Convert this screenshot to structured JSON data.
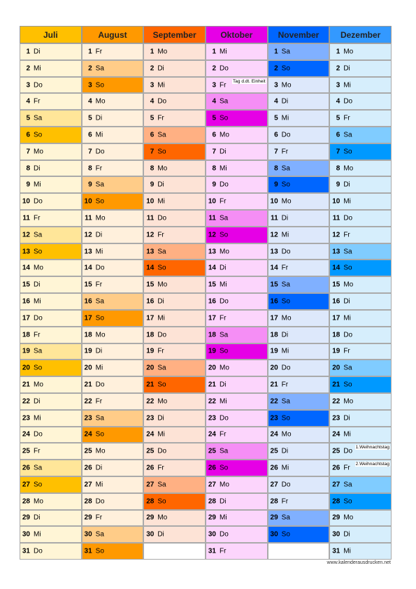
{
  "months": [
    {
      "name": "Juli",
      "colors": {
        "header": "#ffc000",
        "default": "#fff5d6",
        "Sa": "#ffe699",
        "So": "#ffc000"
      },
      "days": [
        [
          1,
          "Di"
        ],
        [
          2,
          "Mi"
        ],
        [
          3,
          "Do"
        ],
        [
          4,
          "Fr"
        ],
        [
          5,
          "Sa"
        ],
        [
          6,
          "So"
        ],
        [
          7,
          "Mo"
        ],
        [
          8,
          "Di"
        ],
        [
          9,
          "Mi"
        ],
        [
          10,
          "Do"
        ],
        [
          11,
          "Fr"
        ],
        [
          12,
          "Sa"
        ],
        [
          13,
          "So"
        ],
        [
          14,
          "Mo"
        ],
        [
          15,
          "Di"
        ],
        [
          16,
          "Mi"
        ],
        [
          17,
          "Do"
        ],
        [
          18,
          "Fr"
        ],
        [
          19,
          "Sa"
        ],
        [
          20,
          "So"
        ],
        [
          21,
          "Mo"
        ],
        [
          22,
          "Di"
        ],
        [
          23,
          "Mi"
        ],
        [
          24,
          "Do"
        ],
        [
          25,
          "Fr"
        ],
        [
          26,
          "Sa"
        ],
        [
          27,
          "So"
        ],
        [
          28,
          "Mo"
        ],
        [
          29,
          "Di"
        ],
        [
          30,
          "Mi"
        ],
        [
          31,
          "Do"
        ]
      ]
    },
    {
      "name": "August",
      "colors": {
        "header": "#ff9900",
        "default": "#fff0dc",
        "Sa": "#ffcc88",
        "So": "#ff9900"
      },
      "days": [
        [
          1,
          "Fr"
        ],
        [
          2,
          "Sa"
        ],
        [
          3,
          "So"
        ],
        [
          4,
          "Mo"
        ],
        [
          5,
          "Di"
        ],
        [
          6,
          "Mi"
        ],
        [
          7,
          "Do"
        ],
        [
          8,
          "Fr"
        ],
        [
          9,
          "Sa"
        ],
        [
          10,
          "So"
        ],
        [
          11,
          "Mo"
        ],
        [
          12,
          "Di"
        ],
        [
          13,
          "Mi"
        ],
        [
          14,
          "Do"
        ],
        [
          15,
          "Fr"
        ],
        [
          16,
          "Sa"
        ],
        [
          17,
          "So"
        ],
        [
          18,
          "Mo"
        ],
        [
          19,
          "Di"
        ],
        [
          20,
          "Mi"
        ],
        [
          21,
          "Do"
        ],
        [
          22,
          "Fr"
        ],
        [
          23,
          "Sa"
        ],
        [
          24,
          "So"
        ],
        [
          25,
          "Mo"
        ],
        [
          26,
          "Di"
        ],
        [
          27,
          "Mi"
        ],
        [
          28,
          "Do"
        ],
        [
          29,
          "Fr"
        ],
        [
          30,
          "Sa"
        ],
        [
          31,
          "So"
        ]
      ]
    },
    {
      "name": "September",
      "colors": {
        "header": "#ff6600",
        "default": "#fde3d6",
        "Sa": "#ffb083",
        "So": "#ff6600"
      },
      "days": [
        [
          1,
          "Mo"
        ],
        [
          2,
          "Di"
        ],
        [
          3,
          "Mi"
        ],
        [
          4,
          "Do"
        ],
        [
          5,
          "Fr"
        ],
        [
          6,
          "Sa"
        ],
        [
          7,
          "So"
        ],
        [
          8,
          "Mo"
        ],
        [
          9,
          "Di"
        ],
        [
          10,
          "Mi"
        ],
        [
          11,
          "Do"
        ],
        [
          12,
          "Fr"
        ],
        [
          13,
          "Sa"
        ],
        [
          14,
          "So"
        ],
        [
          15,
          "Mo"
        ],
        [
          16,
          "Di"
        ],
        [
          17,
          "Mi"
        ],
        [
          18,
          "Do"
        ],
        [
          19,
          "Fr"
        ],
        [
          20,
          "Sa"
        ],
        [
          21,
          "So"
        ],
        [
          22,
          "Mo"
        ],
        [
          23,
          "Di"
        ],
        [
          24,
          "Mi"
        ],
        [
          25,
          "Do"
        ],
        [
          26,
          "Fr"
        ],
        [
          27,
          "Sa"
        ],
        [
          28,
          "So"
        ],
        [
          29,
          "Mo"
        ],
        [
          30,
          "Di"
        ]
      ]
    },
    {
      "name": "Oktober",
      "colors": {
        "header": "#e600e6",
        "default": "#fcd5fc",
        "Sa": "#f58ef5",
        "So": "#e600e6"
      },
      "days": [
        [
          1,
          "Mi"
        ],
        [
          2,
          "Do"
        ],
        [
          3,
          "Fr",
          "Tag d.dt. Einheit"
        ],
        [
          4,
          "Sa"
        ],
        [
          5,
          "So"
        ],
        [
          6,
          "Mo"
        ],
        [
          7,
          "Di"
        ],
        [
          8,
          "Mi"
        ],
        [
          9,
          "Do"
        ],
        [
          10,
          "Fr"
        ],
        [
          11,
          "Sa"
        ],
        [
          12,
          "So"
        ],
        [
          13,
          "Mo"
        ],
        [
          14,
          "Di"
        ],
        [
          15,
          "Mi"
        ],
        [
          16,
          "Do"
        ],
        [
          17,
          "Fr"
        ],
        [
          18,
          "Sa"
        ],
        [
          19,
          "So"
        ],
        [
          20,
          "Mo"
        ],
        [
          21,
          "Di"
        ],
        [
          22,
          "Mi"
        ],
        [
          23,
          "Do"
        ],
        [
          24,
          "Fr"
        ],
        [
          25,
          "Sa"
        ],
        [
          26,
          "So"
        ],
        [
          27,
          "Mo"
        ],
        [
          28,
          "Di"
        ],
        [
          29,
          "Mi"
        ],
        [
          30,
          "Do"
        ],
        [
          31,
          "Fr"
        ]
      ]
    },
    {
      "name": "November",
      "colors": {
        "header": "#0066ff",
        "default": "#dde8fb",
        "Sa": "#80b0ff",
        "So": "#0066ff"
      },
      "days": [
        [
          1,
          "Sa"
        ],
        [
          2,
          "So"
        ],
        [
          3,
          "Mo"
        ],
        [
          4,
          "Di"
        ],
        [
          5,
          "Mi"
        ],
        [
          6,
          "Do"
        ],
        [
          7,
          "Fr"
        ],
        [
          8,
          "Sa"
        ],
        [
          9,
          "So"
        ],
        [
          10,
          "Mo"
        ],
        [
          11,
          "Di"
        ],
        [
          12,
          "Mi"
        ],
        [
          13,
          "Do"
        ],
        [
          14,
          "Fr"
        ],
        [
          15,
          "Sa"
        ],
        [
          16,
          "So"
        ],
        [
          17,
          "Mo"
        ],
        [
          18,
          "Di"
        ],
        [
          19,
          "Mi"
        ],
        [
          20,
          "Do"
        ],
        [
          21,
          "Fr"
        ],
        [
          22,
          "Sa"
        ],
        [
          23,
          "So"
        ],
        [
          24,
          "Mo"
        ],
        [
          25,
          "Di"
        ],
        [
          26,
          "Mi"
        ],
        [
          27,
          "Do"
        ],
        [
          28,
          "Fr"
        ],
        [
          29,
          "Sa"
        ],
        [
          30,
          "So"
        ]
      ]
    },
    {
      "name": "Dezember",
      "colors": {
        "header": "#3399ff",
        "default": "#d6eefc",
        "Sa": "#80ccff",
        "So": "#0099ff"
      },
      "days": [
        [
          1,
          "Mo"
        ],
        [
          2,
          "Di"
        ],
        [
          3,
          "Mi"
        ],
        [
          4,
          "Do"
        ],
        [
          5,
          "Fr"
        ],
        [
          6,
          "Sa"
        ],
        [
          7,
          "So"
        ],
        [
          8,
          "Mo"
        ],
        [
          9,
          "Di"
        ],
        [
          10,
          "Mi"
        ],
        [
          11,
          "Do"
        ],
        [
          12,
          "Fr"
        ],
        [
          13,
          "Sa"
        ],
        [
          14,
          "So"
        ],
        [
          15,
          "Mo"
        ],
        [
          16,
          "Di"
        ],
        [
          17,
          "Mi"
        ],
        [
          18,
          "Do"
        ],
        [
          19,
          "Fr"
        ],
        [
          20,
          "Sa"
        ],
        [
          21,
          "So"
        ],
        [
          22,
          "Mo"
        ],
        [
          23,
          "Di"
        ],
        [
          24,
          "Mi"
        ],
        [
          25,
          "Do",
          "1.Weihnachtstag"
        ],
        [
          26,
          "Fr",
          "2.Weihnachtstag"
        ],
        [
          27,
          "Sa"
        ],
        [
          28,
          "So"
        ],
        [
          29,
          "Mo"
        ],
        [
          30,
          "Di"
        ],
        [
          31,
          "Mi"
        ]
      ]
    }
  ],
  "footer": "www.kalenderausdrucken.net"
}
